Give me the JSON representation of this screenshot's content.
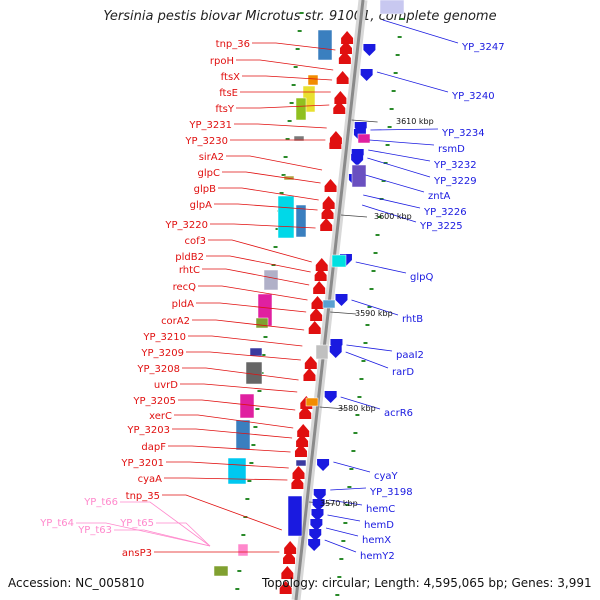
{
  "title": "Yersinia pestis biovar Microtus str. 91001, complete genome",
  "footer": {
    "accession": "Accession: NC_005810",
    "topology": "Topology: circular; Length: 4,595,065 bp; Genes: 3,991"
  },
  "colors": {
    "forward": "#e01010",
    "reverse": "#1a1ae0",
    "trna": "#ff88cc",
    "backbone": "#9a9a9a"
  },
  "tick_labels": [
    "3610 kbp",
    "3600 kbp",
    "3590 kbp",
    "3580 kbp",
    "3570 kbp"
  ],
  "left_genes": [
    "tnp_36",
    "rpoH",
    "ftsX",
    "ftsE",
    "ftsY",
    "YP_3231",
    "YP_3230",
    "sirA2",
    "glpC",
    "glpB",
    "glpA",
    "YP_3220",
    "cof3",
    "pldB2",
    "rhtC",
    "recQ",
    "pldA",
    "corA2",
    "YP_3210",
    "YP_3209",
    "YP_3208",
    "uvrD",
    "YP_3205",
    "xerC",
    "YP_3203",
    "dapF",
    "YP_3201",
    "cyaA",
    "tnp_35",
    "ansP3"
  ],
  "trna_genes": [
    "YP_t66",
    "YP_t64",
    "YP_t65",
    "YP_t63"
  ],
  "right_genes": [
    "YP_3247",
    "YP_3240",
    "YP_3234",
    "rsmD",
    "YP_3232",
    "YP_3229",
    "zntA",
    "YP_3226",
    "YP_3225",
    "glpQ",
    "rhtB",
    "paaI2",
    "rarD",
    "acrR6",
    "cyaY",
    "YP_3198",
    "hemC",
    "hemD",
    "hemX",
    "hemY2"
  ]
}
